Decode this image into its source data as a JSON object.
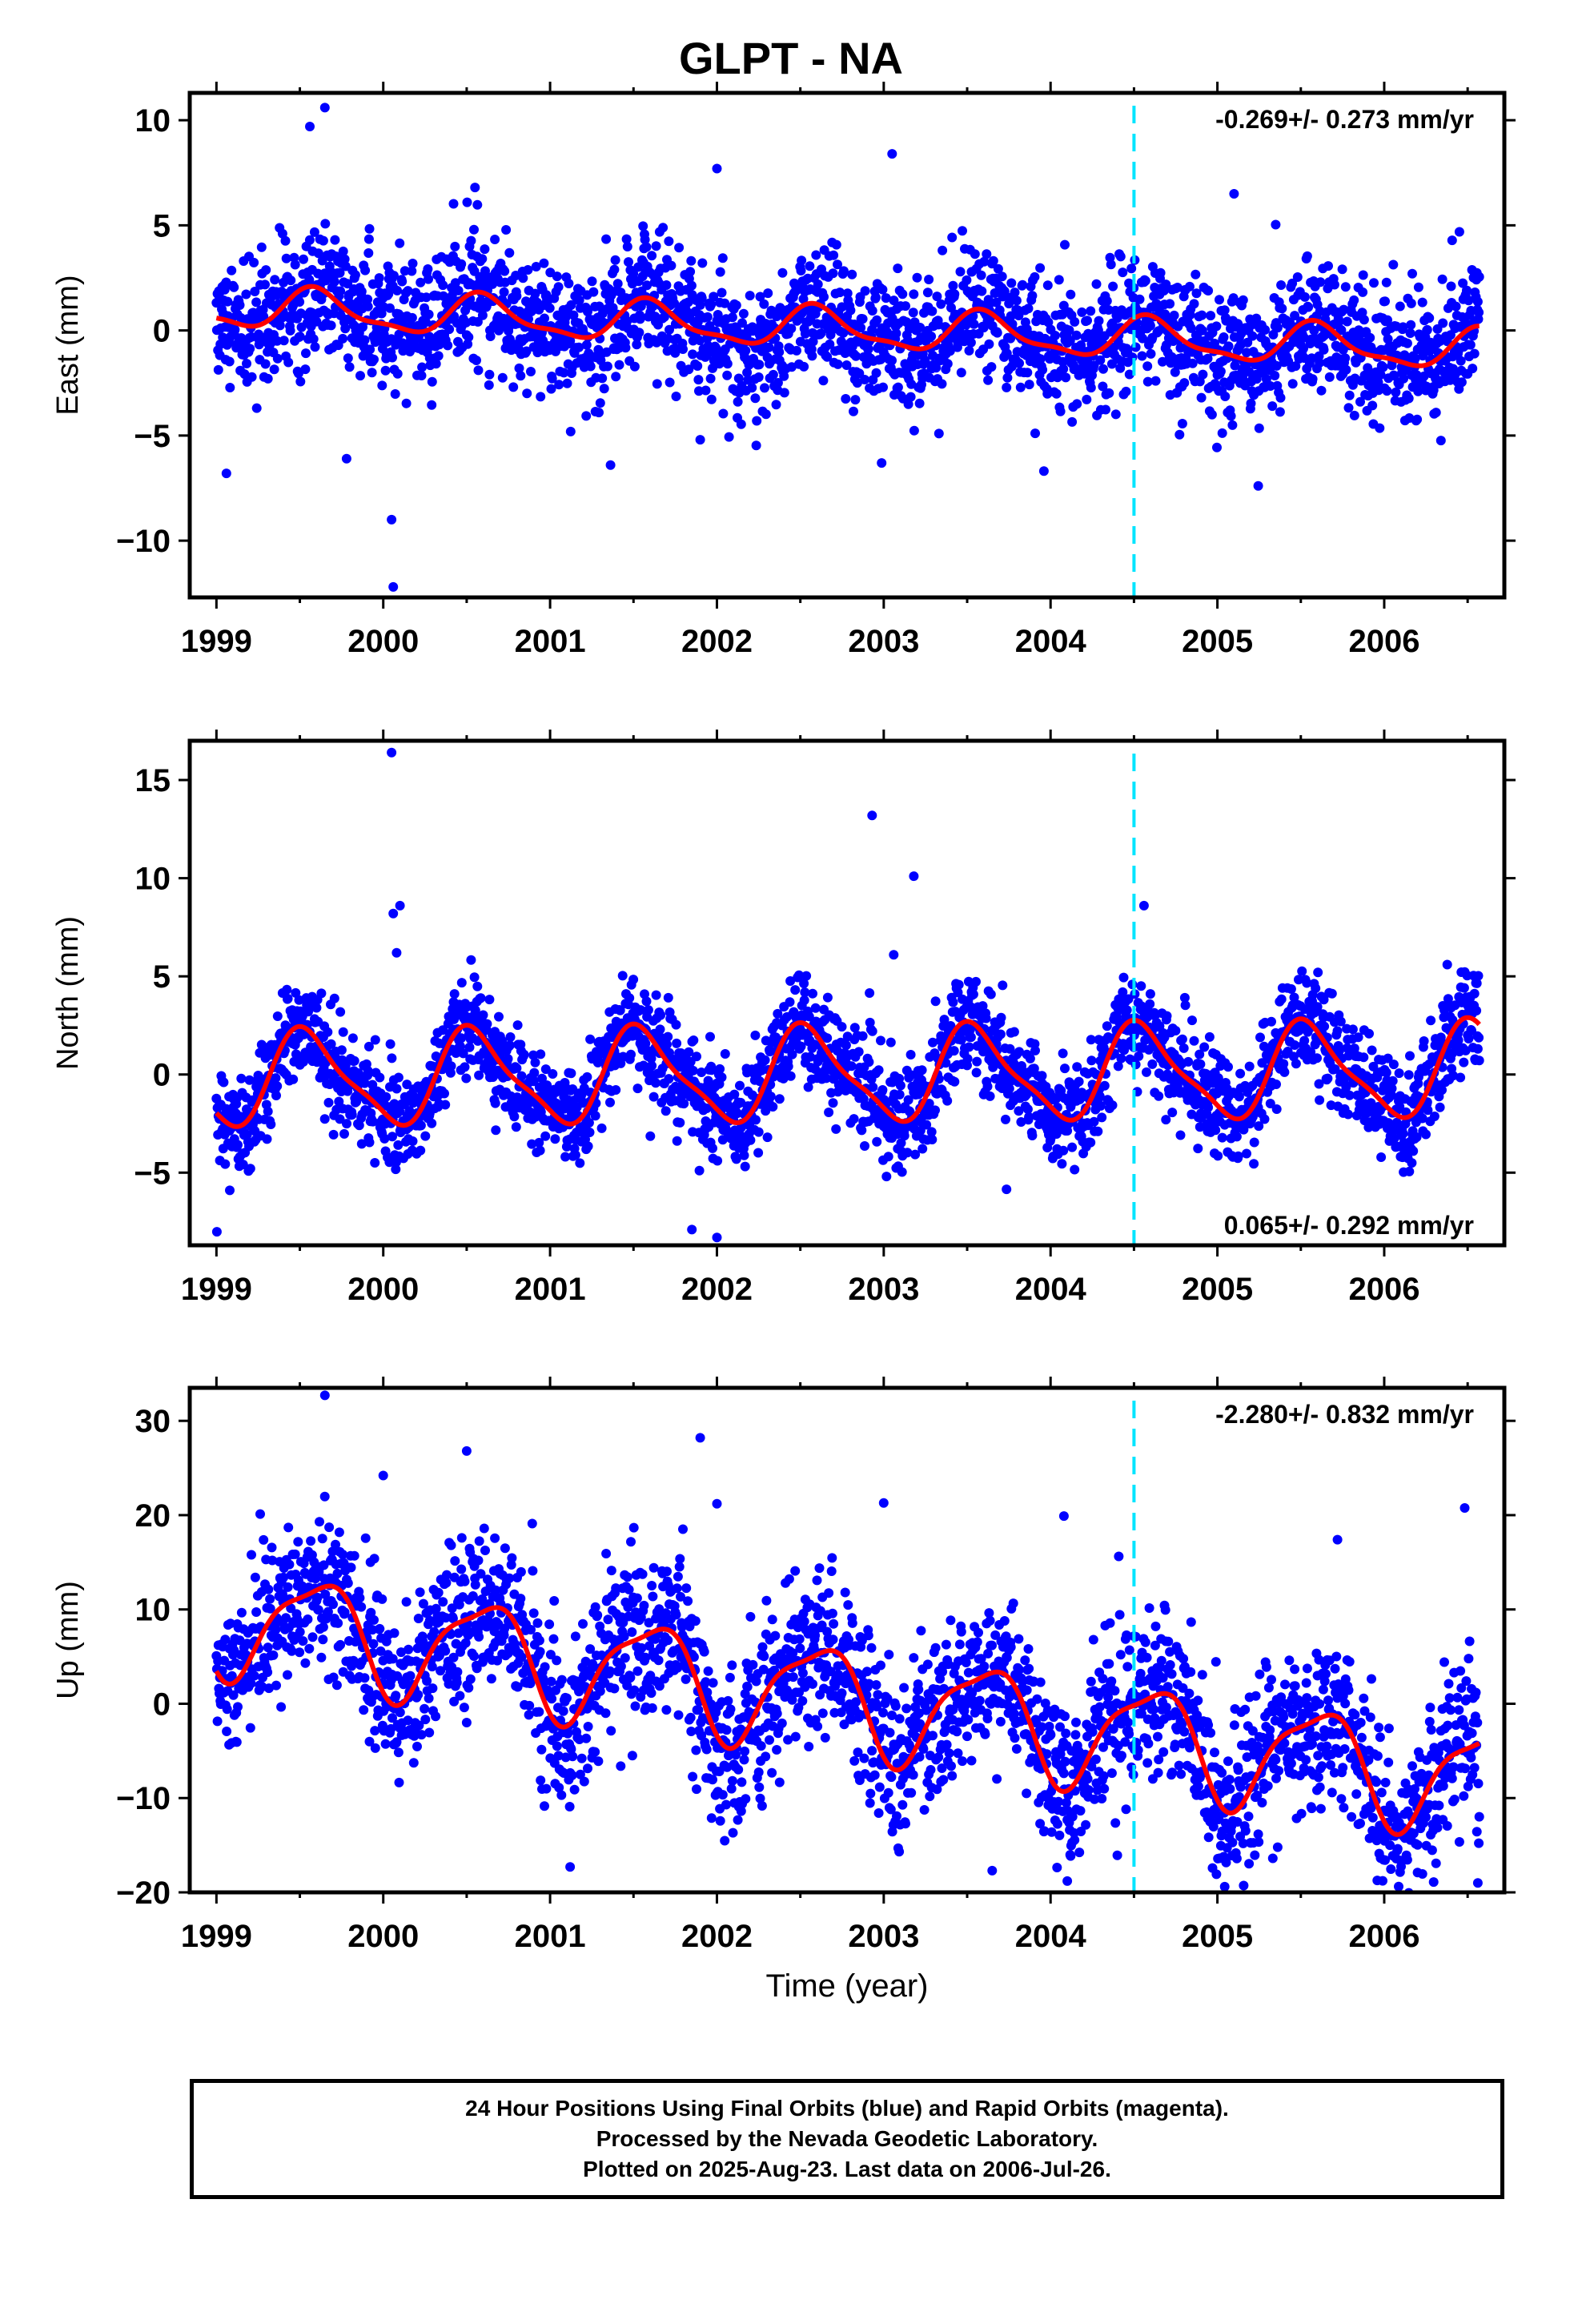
{
  "title": "GLPT - NA",
  "colors": {
    "points": "#0000ff",
    "fit": "#ff0000",
    "event_line": "#00e5ff",
    "frame": "#000000"
  },
  "chart_data": [
    {
      "type": "scatter",
      "name": "east",
      "ylabel": "East (mm)",
      "xlabel": "",
      "xlim": [
        1998.84,
        2006.72
      ],
      "ylim": [
        -12.7,
        11.3
      ],
      "yticks": [
        -10,
        -5,
        0,
        5,
        10
      ],
      "xticks": [
        1999,
        2000,
        2001,
        2002,
        2003,
        2004,
        2005,
        2006
      ],
      "event_line_x": 2004.5,
      "rate_label": "-0.269+/- 0.273 mm/yr",
      "rate_position": "top-right",
      "data_span": [
        1999.0,
        2006.57
      ],
      "series": [
        {
          "name": "points",
          "kind": "scatter",
          "approx_count": 2600,
          "scatter_std_mm": 1.5
        },
        {
          "name": "fit",
          "kind": "line",
          "model": {
            "offset": 0.0,
            "trend_mm_per_yr": -0.269,
            "ref_epoch": 2003.0,
            "annual_amp": 0.9,
            "annual_peak": 2000.6,
            "semiannual_amp": 0.3,
            "semiannual_peak": 2000.55
          }
        }
      ],
      "outliers": [
        [
          1999.06,
          -6.8
        ],
        [
          1999.56,
          9.7
        ],
        [
          1999.65,
          10.6
        ],
        [
          1999.78,
          -6.1
        ],
        [
          2000.05,
          -9.0
        ],
        [
          2000.06,
          -12.2
        ],
        [
          2000.55,
          6.8
        ],
        [
          2001.9,
          -5.2
        ],
        [
          2002.0,
          7.7
        ],
        [
          2003.05,
          8.4
        ],
        [
          2005.1,
          6.5
        ]
      ]
    },
    {
      "type": "scatter",
      "name": "north",
      "ylabel": "North (mm)",
      "xlabel": "",
      "xlim": [
        1998.84,
        2006.72
      ],
      "ylim": [
        -8.7,
        17.0
      ],
      "yticks": [
        -5,
        0,
        5,
        10,
        15
      ],
      "xticks": [
        1999,
        2000,
        2001,
        2002,
        2003,
        2004,
        2005,
        2006
      ],
      "event_line_x": 2004.5,
      "rate_label": "0.065+/- 0.292 mm/yr",
      "rate_position": "bottom-right",
      "data_span": [
        1999.0,
        2006.57
      ],
      "series": [
        {
          "name": "points",
          "kind": "scatter",
          "approx_count": 2600,
          "scatter_std_mm": 1.3
        },
        {
          "name": "fit",
          "kind": "line",
          "model": {
            "offset": 0.0,
            "trend_mm_per_yr": 0.065,
            "ref_epoch": 2003.0,
            "annual_amp": 2.3,
            "annual_peak": 2000.55,
            "semiannual_amp": 0.6,
            "semiannual_peak": 2000.45
          }
        }
      ],
      "outliers": [
        [
          2000.05,
          16.4
        ],
        [
          2000.06,
          8.2
        ],
        [
          2000.1,
          8.6
        ],
        [
          2000.08,
          6.2
        ],
        [
          2002.93,
          13.2
        ],
        [
          2003.18,
          10.1
        ],
        [
          2003.06,
          6.1
        ],
        [
          2004.56,
          8.6
        ],
        [
          2001.85,
          -7.9
        ],
        [
          2002.0,
          -8.3
        ],
        [
          1999.08,
          -5.9
        ]
      ]
    },
    {
      "type": "scatter",
      "name": "up",
      "ylabel": "Up (mm)",
      "xlabel": "Time (year)",
      "xlim": [
        1998.84,
        2006.72
      ],
      "ylim": [
        -20.0,
        33.5
      ],
      "yticks": [
        -20,
        -10,
        0,
        10,
        20,
        30
      ],
      "xticks": [
        1999,
        2000,
        2001,
        2002,
        2003,
        2004,
        2005,
        2006
      ],
      "event_line_x": 2004.5,
      "rate_label": "-2.280+/- 0.832 mm/yr",
      "rate_position": "top-right",
      "data_span": [
        1999.0,
        2006.57
      ],
      "series": [
        {
          "name": "points",
          "kind": "scatter",
          "approx_count": 2600,
          "scatter_std_mm": 4.2
        },
        {
          "name": "fit",
          "kind": "line",
          "model": {
            "offset": 0.0,
            "trend_mm_per_yr": -2.28,
            "ref_epoch": 2003.0,
            "annual_amp": 5.5,
            "annual_peak": 2000.6,
            "semiannual_amp": 1.5,
            "semiannual_peak": 2000.8
          }
        }
      ],
      "outliers": [
        [
          1999.65,
          32.7
        ],
        [
          2000.0,
          24.2
        ],
        [
          2000.5,
          26.8
        ],
        [
          2001.9,
          28.2
        ],
        [
          2002.0,
          21.2
        ],
        [
          2003.0,
          21.3
        ],
        [
          2004.08,
          19.9
        ],
        [
          2005.72,
          17.4
        ],
        [
          2001.12,
          -17.3
        ],
        [
          2003.65,
          -17.7
        ],
        [
          2004.1,
          -18.8
        ],
        [
          2006.2,
          -17.9
        ]
      ]
    }
  ],
  "footer": {
    "line1": "24 Hour Positions Using Final Orbits (blue) and Rapid Orbits (magenta).",
    "line2": "Processed by the Nevada Geodetic Laboratory.",
    "line3": "Plotted on 2025-Aug-23. Last data on 2006-Jul-26."
  }
}
